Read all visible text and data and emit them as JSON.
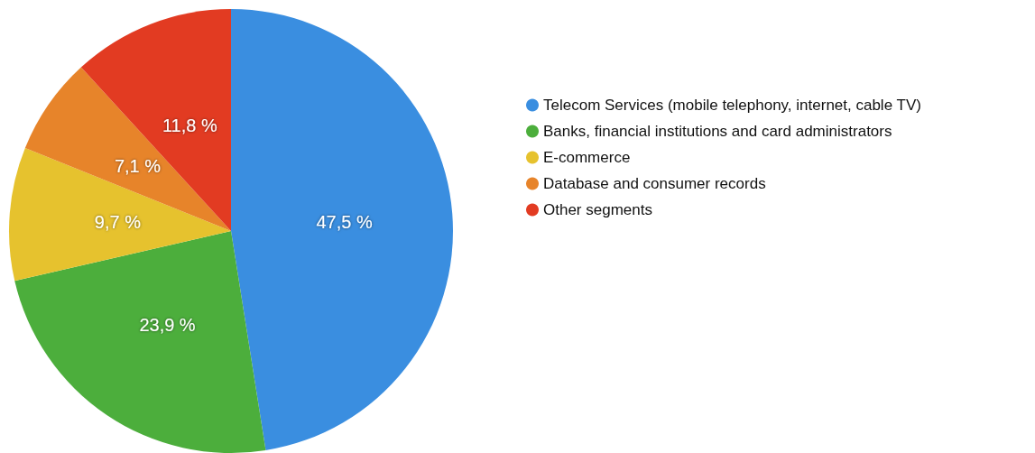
{
  "chart_data": {
    "type": "pie",
    "categories": [
      "Telecom Services (mobile telephony, internet, cable TV)",
      "Banks, financial institutions and card administrators",
      "E-commerce",
      "Database and consumer records",
      "Other segments"
    ],
    "values": [
      47.5,
      23.9,
      9.7,
      7.1,
      11.8
    ],
    "value_labels": [
      "47,5 %",
      "23,9 %",
      "9,7 %",
      "7,1 %",
      "11,8 %"
    ],
    "colors": [
      "#3a8ee0",
      "#4cae3c",
      "#e6c22e",
      "#e7842a",
      "#e23b22"
    ],
    "legend": "right"
  }
}
